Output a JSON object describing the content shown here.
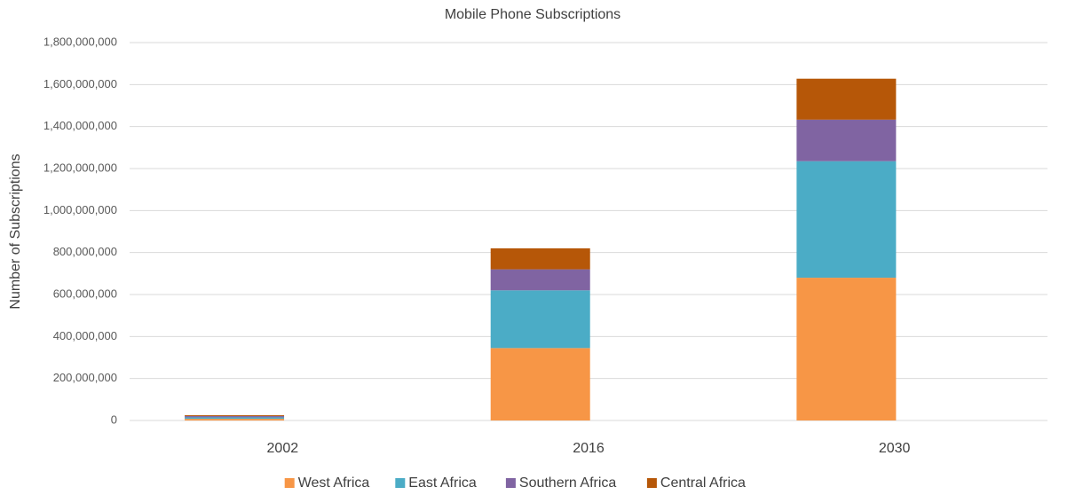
{
  "chart_data": {
    "type": "stacked_bar",
    "title": "Mobile Phone Subscriptions",
    "y_label": "Number of Subscriptions",
    "categories": [
      "2002",
      "2016",
      "2030"
    ],
    "series": [
      {
        "name": "West Africa",
        "color": "#f79646",
        "values": [
          8000000,
          345000000,
          680000000
        ]
      },
      {
        "name": "East Africa",
        "color": "#4bacc6",
        "values": [
          7000000,
          275000000,
          555000000
        ]
      },
      {
        "name": "Southern Africa",
        "color": "#8064a2",
        "values": [
          6000000,
          100000000,
          198000000
        ]
      },
      {
        "name": "Central Africa",
        "color": "#b65708",
        "values": [
          4000000,
          100000000,
          195000000
        ]
      }
    ],
    "ylim": [
      0,
      1800000000
    ],
    "yticks": [
      0,
      {
        "value": 200000000,
        "label": "200,000,000"
      },
      {
        "value": 400000000,
        "label": "400,000,000"
      },
      {
        "value": 600000000,
        "label": "600,000,000"
      },
      {
        "value": 800000000,
        "label": "800,000,000"
      },
      {
        "value": 1000000000,
        "label": "1,000,000,000"
      },
      {
        "value": 1200000000,
        "label": "1,200,000,000"
      },
      {
        "value": 1400000000,
        "label": "1,400,000,000"
      },
      {
        "value": 1600000000,
        "label": "1,600,000,000"
      },
      {
        "value": 1800000000,
        "label": "1,800,000,000"
      }
    ],
    "grid": true,
    "legend": "bottom"
  }
}
